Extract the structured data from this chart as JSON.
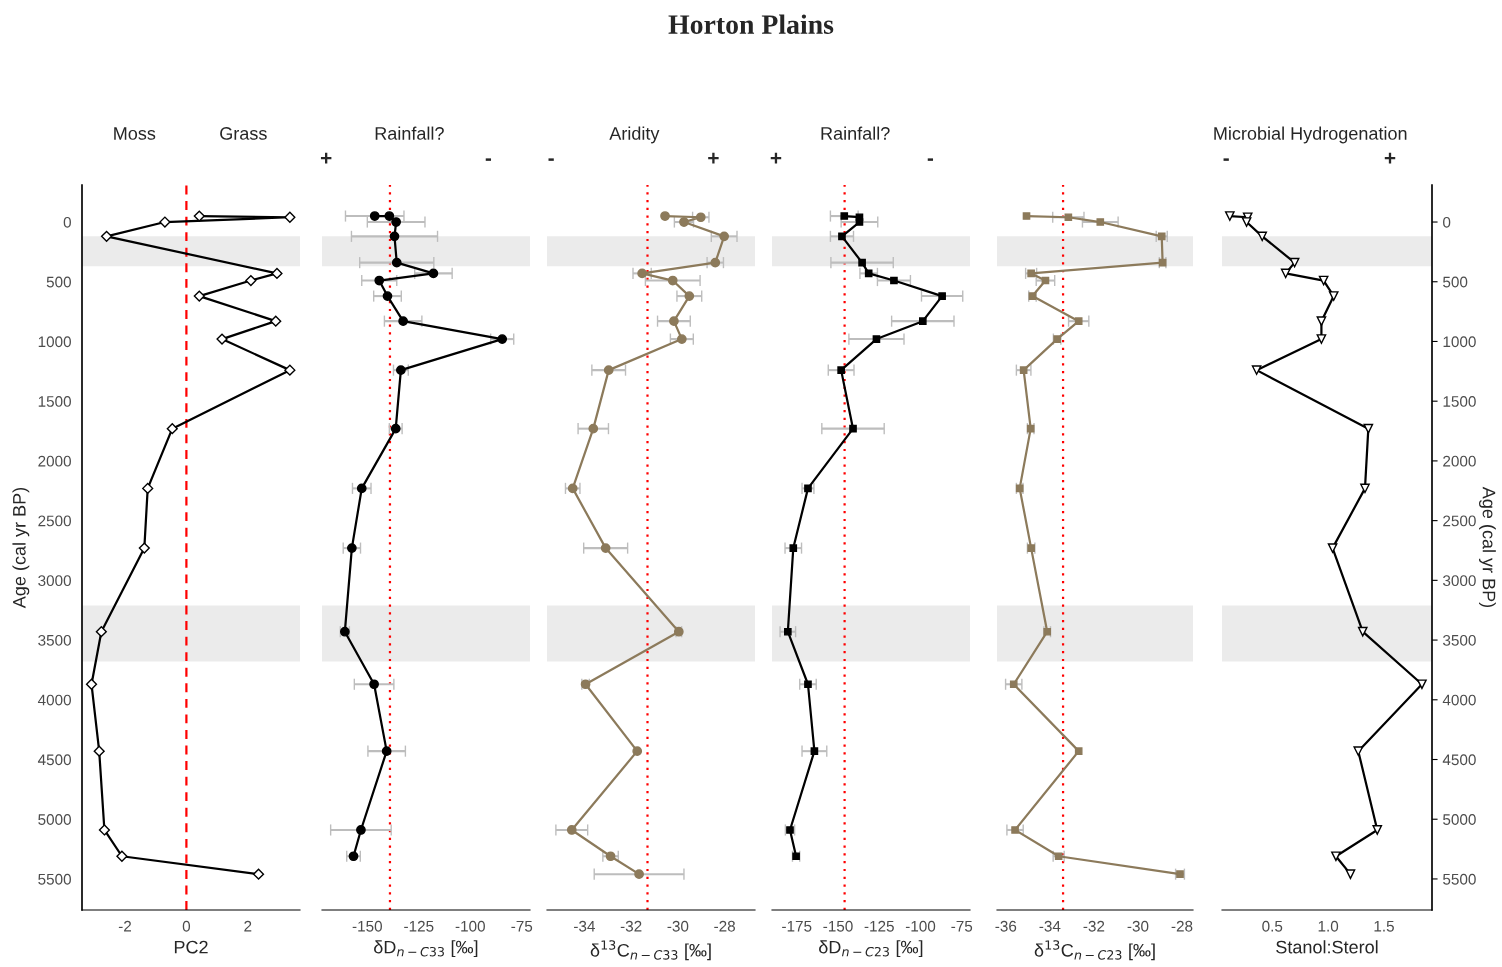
{
  "chart_data": [
    {
      "type": "other",
      "title": "Horton Plains"
    },
    {
      "type": "line",
      "xlabel": "PC2",
      "ylabel": "Age (cal yr BP)",
      "annotations": [
        "Moss",
        "Grass"
      ],
      "marker": "diamond",
      "series": [
        {
          "color": "#000000",
          "x": [
            0.42,
            3.37,
            -0.7,
            -2.6,
            2.95,
            2.1,
            0.42,
            2.91,
            1.16,
            3.37,
            -0.46,
            -1.26,
            -1.37,
            -2.77,
            -3.09,
            -2.84,
            -2.67,
            -2.1,
            2.35
          ],
          "values": [
            -50,
            -40,
            0,
            120,
            430,
            490,
            620,
            830,
            980,
            1240,
            1730,
            2230,
            2730,
            3430,
            3870,
            4430,
            5090,
            5310,
            5460
          ]
        }
      ],
      "xlim": [
        -3.4,
        3.7
      ],
      "xticks": [
        -2,
        0,
        2
      ],
      "ylim": [
        5760,
        -310
      ],
      "yticks": [
        0,
        500,
        1000,
        1500,
        2000,
        2500,
        3000,
        3500,
        4000,
        4500,
        5000,
        5500
      ],
      "ref_lines": [
        {
          "axis": "x",
          "value": 0,
          "color": "#ff0000",
          "line_style": "dashed"
        }
      ],
      "bands": [
        {
          "axis": "y",
          "from": 120,
          "to": 370,
          "color": "#ebebeb"
        },
        {
          "axis": "y",
          "from": 3210,
          "to": 3680,
          "color": "#ebebeb"
        }
      ]
    },
    {
      "type": "line",
      "xlabel": "δD$_{n−C33}$ [‰]",
      "annotations": [
        "Rainfall?",
        "+",
        "-"
      ],
      "marker": "circle",
      "tick_labels": "x",
      "series": [
        {
          "color": "#000000",
          "x": [
            -146.4,
            -139.3,
            -136.0,
            -136.8,
            -135.7,
            -117.9,
            -144.2,
            -140.2,
            -132.6,
            -84.5,
            -133.7,
            -136.2,
            -152.7,
            -157.5,
            -160.9,
            -146.7,
            -140.6,
            -153.1,
            -156.7
          ],
          "values": [
            -50,
            -50,
            0,
            120,
            340,
            430,
            490,
            620,
            830,
            980,
            1240,
            1730,
            2230,
            2730,
            3430,
            3870,
            4430,
            5090,
            5310
          ],
          "xerrors": [
            14.2,
            null,
            14.0,
            20.9,
            18.0,
            9.1,
            8.5,
            6.7,
            9.1,
            5.6,
            3.6,
            3.1,
            4.5,
            4.2,
            2.2,
            9.6,
            9.1,
            14.7,
            3.3
          ]
        }
      ],
      "xlim": [
        -172,
        -71
      ],
      "xticks": [
        -150,
        -125,
        -100,
        -75
      ],
      "ylim": [
        5760,
        -310
      ],
      "yticks": [
        0,
        500,
        1000,
        1500,
        2000,
        2500,
        3000,
        3500,
        4000,
        4500,
        5000,
        5500
      ],
      "ref_lines": [
        {
          "axis": "x",
          "value": -139,
          "color": "#ff0000",
          "line_style": "dotted"
        }
      ],
      "bands": [
        {
          "axis": "y",
          "from": 120,
          "to": 370,
          "color": "#ebebeb"
        },
        {
          "axis": "y",
          "from": 3210,
          "to": 3680,
          "color": "#ebebeb"
        }
      ]
    },
    {
      "type": "line",
      "xlabel": "δ$^{13}$C$_{n−C33}$ [‰]",
      "annotations": [
        "Aridity",
        "-",
        "+"
      ],
      "marker": "circle",
      "tick_labels": "x",
      "series": [
        {
          "color": "#8c7a5b",
          "x": [
            -30.55,
            -29.02,
            -29.74,
            -28.02,
            -28.4,
            -31.53,
            -30.22,
            -29.51,
            -30.17,
            -29.83,
            -32.96,
            -33.62,
            -34.5,
            -33.09,
            -29.96,
            -33.95,
            -31.74,
            -34.54,
            -32.88,
            -31.66
          ],
          "values": [
            -50,
            -40,
            0,
            120,
            340,
            430,
            490,
            620,
            830,
            980,
            1240,
            1730,
            2230,
            2730,
            3430,
            3870,
            4430,
            5090,
            5310,
            5460
          ],
          "xerrors": [
            null,
            0.35,
            0.41,
            0.55,
            0.35,
            0.39,
            1.17,
            0.53,
            0.7,
            0.49,
            0.72,
            0.65,
            0.31,
            0.94,
            0.12,
            0.16,
            null,
            0.68,
            0.33,
            1.92
          ]
        }
      ],
      "xlim": [
        -35.6,
        -26.7
      ],
      "xticks": [
        -34,
        -32,
        -30,
        -28
      ],
      "ylim": [
        5760,
        -310
      ],
      "yticks": [
        0,
        500,
        1000,
        1500,
        2000,
        2500,
        3000,
        3500,
        4000,
        4500,
        5000,
        5500
      ],
      "ref_lines": [
        {
          "axis": "x",
          "value": -31.3,
          "color": "#ff0000",
          "line_style": "dotted"
        }
      ],
      "bands": [
        {
          "axis": "y",
          "from": 120,
          "to": 370,
          "color": "#ebebeb"
        },
        {
          "axis": "y",
          "from": 3210,
          "to": 3680,
          "color": "#ebebeb"
        }
      ]
    },
    {
      "type": "line",
      "xlabel": "δD$_{n−C23}$ [‰]",
      "annotations": [
        "Rainfall?",
        "+",
        "-"
      ],
      "marker": "square",
      "tick_labels": "x",
      "series": [
        {
          "color": "#000000",
          "x": [
            -146.2,
            -137.0,
            -137.0,
            -147.6,
            -135.4,
            -131.4,
            -116.1,
            -86.9,
            -98.6,
            -126.7,
            -148.1,
            -140.9,
            -168.2,
            -177.1,
            -180.4,
            -168.2,
            -164.3,
            -179.1,
            -175.4
          ],
          "values": [
            -50,
            -40,
            0,
            120,
            340,
            430,
            490,
            620,
            830,
            980,
            1240,
            1730,
            2230,
            2730,
            3430,
            3870,
            4430,
            5090,
            5310
          ],
          "xerrors": [
            8.4,
            null,
            11.1,
            7.0,
            18.9,
            5.3,
            10.0,
            12.5,
            18.9,
            16.7,
            7.8,
            18.9,
            3.6,
            5.0,
            4.7,
            5.0,
            7.5,
            2.8,
            2.2
          ]
        }
      ],
      "xlim": [
        -190,
        -70
      ],
      "xticks": [
        -175,
        -150,
        -125,
        -100,
        -75
      ],
      "ylim": [
        5760,
        -310
      ],
      "yticks": [
        0,
        500,
        1000,
        1500,
        2000,
        2500,
        3000,
        3500,
        4000,
        4500,
        5000,
        5500
      ],
      "ref_lines": [
        {
          "axis": "x",
          "value": -146,
          "color": "#ff0000",
          "line_style": "dotted"
        }
      ],
      "bands": [
        {
          "axis": "y",
          "from": 120,
          "to": 370,
          "color": "#ebebeb"
        },
        {
          "axis": "y",
          "from": 3210,
          "to": 3680,
          "color": "#ebebeb"
        }
      ]
    },
    {
      "type": "line",
      "xlabel": "δ$^{13}$C$_{n−C23}$ [‰]",
      "marker": "square",
      "tick_labels": "x",
      "series": [
        {
          "color": "#8c7a5b",
          "x": [
            -35.06,
            -33.16,
            -31.71,
            -28.92,
            -28.88,
            -34.85,
            -34.2,
            -34.79,
            -32.69,
            -33.67,
            -35.19,
            -34.87,
            -35.37,
            -34.85,
            -34.12,
            -35.64,
            -32.69,
            -35.58,
            -33.6,
            -28.09
          ],
          "values": [
            -50,
            -40,
            0,
            120,
            340,
            430,
            490,
            620,
            830,
            980,
            1240,
            1730,
            2230,
            2730,
            3430,
            3870,
            4430,
            5090,
            5310,
            5460
          ],
          "xerrors": [
            null,
            0.71,
            0.81,
            0.25,
            0.15,
            0.25,
            0.42,
            0.17,
            0.46,
            0.17,
            0.33,
            0.15,
            0.15,
            0.17,
            0.15,
            0.37,
            null,
            0.37,
            0.25,
            0.2
          ]
        }
      ],
      "xlim": [
        -36.4,
        -27.5
      ],
      "xticks": [
        -36,
        -34,
        -32,
        -30,
        -28
      ],
      "ylim": [
        5760,
        -310
      ],
      "yticks": [
        0,
        500,
        1000,
        1500,
        2000,
        2500,
        3000,
        3500,
        4000,
        4500,
        5000,
        5500
      ],
      "ref_lines": [
        {
          "axis": "x",
          "value": -33.4,
          "color": "#ff0000",
          "line_style": "dotted"
        }
      ],
      "bands": [
        {
          "axis": "y",
          "from": 120,
          "to": 370,
          "color": "#ebebeb"
        },
        {
          "axis": "y",
          "from": 3210,
          "to": 3680,
          "color": "#ebebeb"
        }
      ]
    },
    {
      "type": "line",
      "xlabel": "Stanol:Sterol",
      "y2label": "Age (cal yr BP)",
      "annotations": [
        "Microbial Hydrogenation",
        "-",
        "+"
      ],
      "marker": "triangle",
      "series": [
        {
          "color": "#000000",
          "axis": "y2",
          "x": [
            0.12,
            0.28,
            0.27,
            0.41,
            0.7,
            0.62,
            0.96,
            1.05,
            0.94,
            0.94,
            0.36,
            1.36,
            1.33,
            1.04,
            1.31,
            1.84,
            1.27,
            1.44,
            1.07,
            1.2
          ],
          "values": [
            -50,
            -40,
            0,
            120,
            340,
            430,
            490,
            620,
            830,
            980,
            1240,
            1730,
            2230,
            2730,
            3430,
            3870,
            4430,
            5090,
            5310,
            5460
          ]
        }
      ],
      "xlim": [
        0.05,
        1.93
      ],
      "xticks": [
        0.5,
        {
          "value": 1.0,
          "label": "1.0"
        },
        1.5
      ],
      "y2lim": [
        5760,
        -310
      ],
      "y2ticks": [
        0,
        500,
        1000,
        1500,
        2000,
        2500,
        3000,
        3500,
        4000,
        4500,
        5000,
        5500
      ],
      "bands": [
        {
          "axis": "y2",
          "from": 120,
          "to": 370,
          "color": "#ebebeb"
        },
        {
          "axis": "y2",
          "from": 3210,
          "to": 3680,
          "color": "#ebebeb"
        }
      ]
    }
  ]
}
